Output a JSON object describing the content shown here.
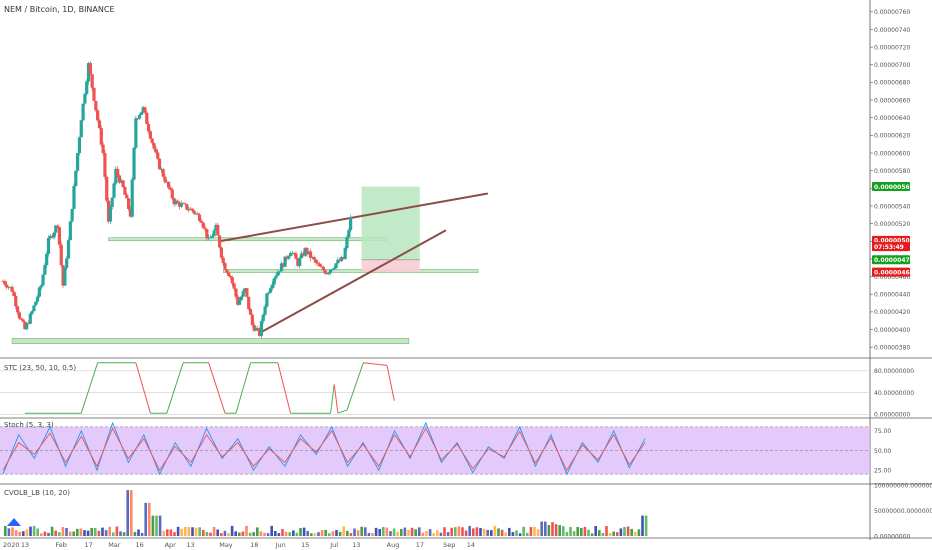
{
  "header": {
    "title": "NEM / Bitcoin, 1D, BINANCE"
  },
  "panels": {
    "stc": {
      "label": "STC (23, 50, 10, 0.5)"
    },
    "stoch": {
      "label": "Stoch (5, 3, 3)"
    },
    "cvol": {
      "label": "CVOLB_LB (10, 20)"
    }
  },
  "colors": {
    "up": "#26a69a",
    "down": "#ef5350",
    "stc_up": "#4caf50",
    "stc_down": "#ef5350",
    "stoch_k": "#2196f3",
    "stoch_d": "#ef5350",
    "stoch_band": "#d9b8fa",
    "trendline": "#8d4c47",
    "zone": "#a5d6a7",
    "target": "#b9e6be",
    "stop": "#f8cdd3"
  },
  "chart_data": [
    {
      "type": "candlestick",
      "title": "NEM / Bitcoin, 1D, BINANCE",
      "x_ticks": [
        "2020",
        "13",
        "Feb",
        "17",
        "Mar",
        "16",
        "Apr",
        "13",
        "May",
        "18",
        "Jun",
        "15",
        "Jul",
        "13",
        "Aug",
        "17",
        "Sep",
        "14"
      ],
      "y_ticks": [
        "0.00000760",
        "0.00000740",
        "0.00000720",
        "0.00000700",
        "0.00000680",
        "0.00000660",
        "0.00000640",
        "0.00000620",
        "0.00000600",
        "0.00000580",
        "0.00000560",
        "0.00000540",
        "0.00000520",
        "0.00000500",
        "0.00000480",
        "0.00000460",
        "0.00000440",
        "0.00000420",
        "0.00000400",
        "0.00000380"
      ],
      "ylim": [
        3.7e-06,
        7.7e-06
      ],
      "close_path": [
        {
          "x": "2020-01-01",
          "y": 4.55e-06
        },
        {
          "x": "2020-01-06",
          "y": 4.45e-06
        },
        {
          "x": "2020-01-10",
          "y": 4.15e-06
        },
        {
          "x": "2020-01-13",
          "y": 4e-06
        },
        {
          "x": "2020-01-17",
          "y": 4.2e-06
        },
        {
          "x": "2020-01-22",
          "y": 4.5e-06
        },
        {
          "x": "2020-01-26",
          "y": 5e-06
        },
        {
          "x": "2020-01-31",
          "y": 5.2e-06
        },
        {
          "x": "2020-02-03",
          "y": 4.5e-06
        },
        {
          "x": "2020-02-06",
          "y": 5e-06
        },
        {
          "x": "2020-02-09",
          "y": 5.6e-06
        },
        {
          "x": "2020-02-13",
          "y": 6.4e-06
        },
        {
          "x": "2020-02-17",
          "y": 7e-06
        },
        {
          "x": "2020-02-21",
          "y": 6.5e-06
        },
        {
          "x": "2020-02-25",
          "y": 6e-06
        },
        {
          "x": "2020-02-28",
          "y": 5.2e-06
        },
        {
          "x": "2020-03-03",
          "y": 5.8e-06
        },
        {
          "x": "2020-03-07",
          "y": 5.6e-06
        },
        {
          "x": "2020-03-11",
          "y": 5.3e-06
        },
        {
          "x": "2020-03-14",
          "y": 6.4e-06
        },
        {
          "x": "2020-03-18",
          "y": 6.5e-06
        },
        {
          "x": "2020-03-22",
          "y": 6.2e-06
        },
        {
          "x": "2020-03-26",
          "y": 5.9e-06
        },
        {
          "x": "2020-03-30",
          "y": 5.7e-06
        },
        {
          "x": "2020-04-04",
          "y": 5.45e-06
        },
        {
          "x": "2020-04-09",
          "y": 5.4e-06
        },
        {
          "x": "2020-04-14",
          "y": 5.35e-06
        },
        {
          "x": "2020-04-19",
          "y": 5.25e-06
        },
        {
          "x": "2020-04-23",
          "y": 5e-06
        },
        {
          "x": "2020-04-27",
          "y": 5.15e-06
        },
        {
          "x": "2020-05-01",
          "y": 4.75e-06
        },
        {
          "x": "2020-05-05",
          "y": 4.6e-06
        },
        {
          "x": "2020-05-09",
          "y": 4.3e-06
        },
        {
          "x": "2020-05-13",
          "y": 4.45e-06
        },
        {
          "x": "2020-05-17",
          "y": 4.05e-06
        },
        {
          "x": "2020-05-21",
          "y": 3.95e-06
        },
        {
          "x": "2020-05-25",
          "y": 4.4e-06
        },
        {
          "x": "2020-05-29",
          "y": 4.6e-06
        },
        {
          "x": "2020-06-03",
          "y": 4.75e-06
        },
        {
          "x": "2020-06-07",
          "y": 4.9e-06
        },
        {
          "x": "2020-06-11",
          "y": 4.75e-06
        },
        {
          "x": "2020-06-15",
          "y": 4.9e-06
        },
        {
          "x": "2020-06-19",
          "y": 4.8e-06
        },
        {
          "x": "2020-06-23",
          "y": 4.7e-06
        },
        {
          "x": "2020-06-27",
          "y": 4.65e-06
        },
        {
          "x": "2020-07-02",
          "y": 4.75e-06
        },
        {
          "x": "2020-07-06",
          "y": 4.8e-06
        },
        {
          "x": "2020-07-10",
          "y": 5.25e-06
        }
      ],
      "price_labels": [
        {
          "text": "0.00000562",
          "value": 5.62e-06,
          "color": "#14a01e"
        },
        {
          "text": "0.00000501",
          "value": 5.01e-06,
          "color": "#e51a1a"
        },
        {
          "text": "07:53:49",
          "value": 4.94e-06,
          "color": "#e51a1a"
        },
        {
          "text": "0.00000479",
          "value": 4.79e-06,
          "color": "#14a01e"
        },
        {
          "text": "0.00000465",
          "value": 4.65e-06,
          "color": "#e51a1a"
        }
      ],
      "zones": [
        {
          "x0": "2020-01-06",
          "x1": "2020-08-11",
          "y0": 3.84e-06,
          "y1": 3.9e-06
        },
        {
          "x0": "2020-02-28",
          "x1": "2020-07-30",
          "y0": 5.02e-06,
          "y1": 5.04e-06
        },
        {
          "x0": "2020-05-01",
          "x1": "2020-09-18",
          "y0": 4.66e-06,
          "y1": 4.68e-06
        }
      ],
      "position": {
        "x0": "2020-07-16",
        "x1": "2020-08-17",
        "entry": 4.79e-06,
        "target": 5.62e-06,
        "stop": 4.65e-06
      },
      "trendlines": [
        {
          "x0": "2020-04-29",
          "y0": 5e-06,
          "x1": "2020-09-23",
          "y1": 5.54e-06
        },
        {
          "x0": "2020-05-21",
          "y0": 3.96e-06,
          "x1": "2020-08-31",
          "y1": 5.12e-06
        }
      ]
    },
    {
      "type": "line",
      "name": "STC (23, 50, 10, 0.5)",
      "y_ticks": [
        "80.00000000",
        "40.00000000",
        "0.00000000"
      ],
      "ylim": [
        -5,
        100
      ],
      "points": [
        {
          "x": "2020-01-13",
          "y": 2
        },
        {
          "x": "2020-02-13",
          "y": 2
        },
        {
          "x": "2020-02-22",
          "y": 95
        },
        {
          "x": "2020-03-14",
          "y": 95
        },
        {
          "x": "2020-03-22",
          "y": 2
        },
        {
          "x": "2020-03-31",
          "y": 2
        },
        {
          "x": "2020-04-09",
          "y": 95
        },
        {
          "x": "2020-04-23",
          "y": 95
        },
        {
          "x": "2020-05-02",
          "y": 2
        },
        {
          "x": "2020-05-08",
          "y": 2
        },
        {
          "x": "2020-05-16",
          "y": 95
        },
        {
          "x": "2020-05-31",
          "y": 95
        },
        {
          "x": "2020-06-07",
          "y": 2
        },
        {
          "x": "2020-06-29",
          "y": 2
        },
        {
          "x": "2020-07-01",
          "y": 55
        },
        {
          "x": "2020-07-03",
          "y": 2
        },
        {
          "x": "2020-07-08",
          "y": 8
        },
        {
          "x": "2020-07-17",
          "y": 95
        },
        {
          "x": "2020-07-30",
          "y": 90
        },
        {
          "x": "2020-08-03",
          "y": 25
        }
      ]
    },
    {
      "type": "line",
      "name": "Stoch (5, 3, 3)",
      "y_ticks": [
        "75.00",
        "50.00",
        "25.00"
      ],
      "ylim": [
        10,
        90
      ],
      "band": [
        20,
        80
      ],
      "k_points": [
        20,
        70,
        40,
        80,
        30,
        75,
        25,
        85,
        35,
        70,
        20,
        60,
        30,
        78,
        40,
        65,
        25,
        55,
        30,
        70,
        45,
        80,
        30,
        60,
        25,
        75,
        40,
        85,
        35,
        60,
        22,
        55,
        40,
        80,
        30,
        70,
        20,
        60,
        35,
        75,
        28,
        65
      ],
      "d_points": [
        25,
        60,
        45,
        72,
        35,
        68,
        30,
        78,
        40,
        65,
        25,
        55,
        35,
        70,
        42,
        60,
        30,
        52,
        35,
        65,
        48,
        75,
        35,
        58,
        30,
        70,
        42,
        78,
        38,
        58,
        27,
        52,
        42,
        74,
        34,
        66,
        25,
        57,
        38,
        70,
        32,
        60
      ]
    },
    {
      "type": "bar",
      "name": "CVOLB_LB (10, 20)",
      "y_ticks": [
        "100000000.00000000",
        "50000000.00000000",
        "0.00000000"
      ],
      "ylim": [
        0,
        100000000
      ]
    }
  ]
}
